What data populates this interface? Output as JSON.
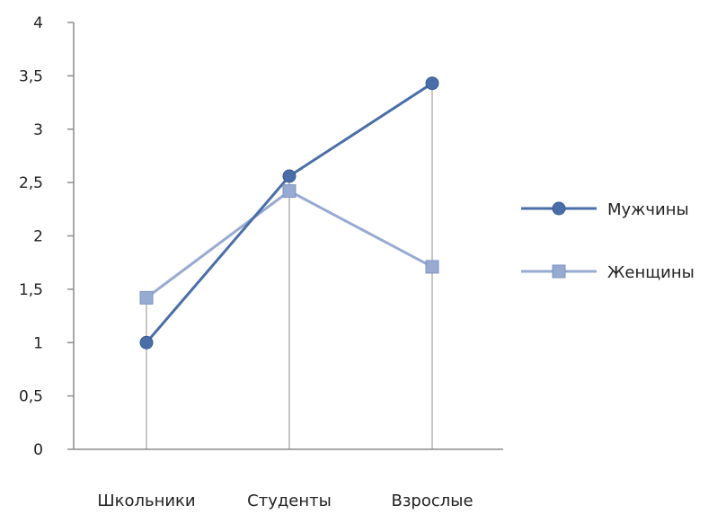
{
  "chart_data": {
    "type": "line",
    "categories": [
      "Школьники",
      "Студенты",
      "Взрослые"
    ],
    "series": [
      {
        "name": "Мужчины",
        "values": [
          1.0,
          2.56,
          3.43
        ],
        "color": "#4a6ea8",
        "marker": "circle"
      },
      {
        "name": "Женщины",
        "values": [
          1.42,
          2.42,
          1.71
        ],
        "color": "#97aad1",
        "marker": "square"
      }
    ],
    "ylim": [
      0,
      4
    ],
    "yticks": [
      0,
      0.5,
      1,
      1.5,
      2,
      2.5,
      3,
      3.5,
      4
    ],
    "ytick_labels": [
      "0",
      "0,5",
      "1",
      "1,5",
      "2",
      "2,5",
      "3",
      "3,5",
      "4"
    ],
    "drop_lines": true,
    "grid": false,
    "legend_position": "right",
    "title": "",
    "xlabel": "",
    "ylabel": ""
  },
  "colors": {
    "axis": "#8c8c8c",
    "drop_line": "#b4b4b4"
  }
}
